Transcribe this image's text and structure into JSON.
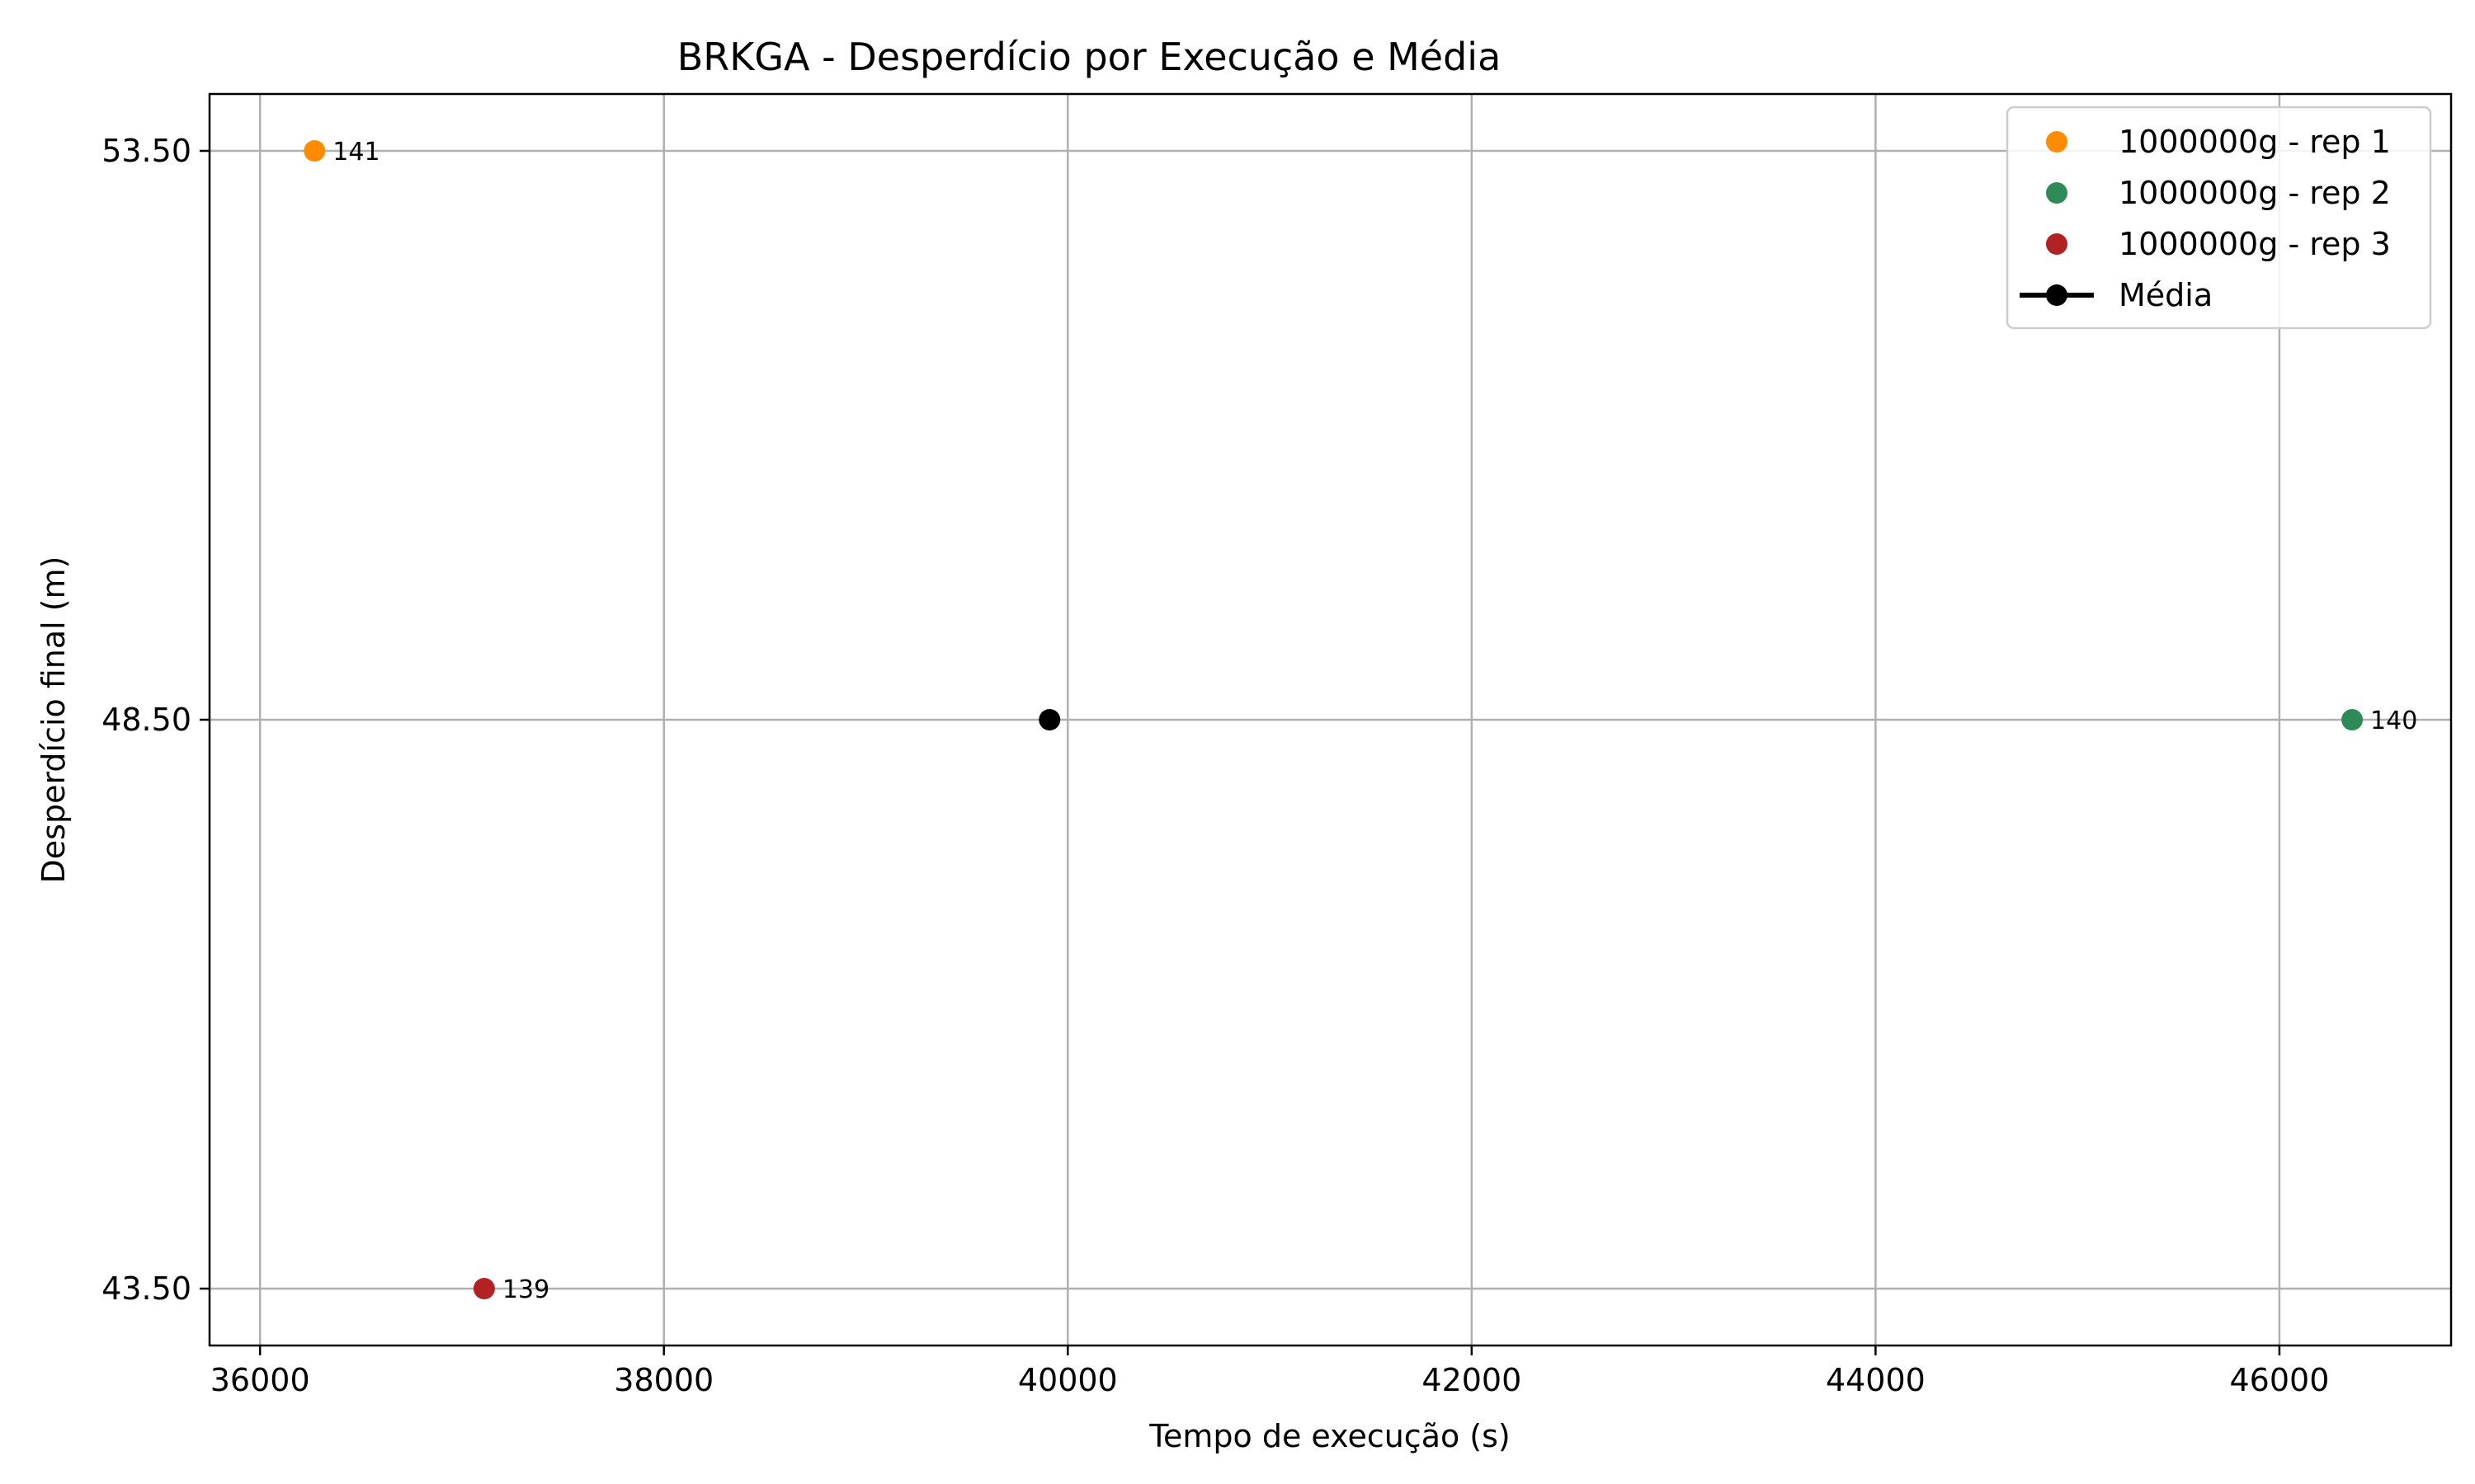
{
  "chart_data": {
    "type": "scatter",
    "title": "BRKGA - Desperdício por Execução e Média",
    "xlabel": "Tempo de execução (s)",
    "ylabel": "Desperdício final (m)",
    "xlim": [
      35750,
      46850
    ],
    "ylim": [
      43.0,
      54.0
    ],
    "xticks": [
      36000,
      38000,
      40000,
      42000,
      44000,
      46000
    ],
    "xtick_labels": [
      "36000",
      "38000",
      "40000",
      "42000",
      "44000",
      "46000"
    ],
    "yticks": [
      43.5,
      48.5,
      53.5
    ],
    "ytick_labels": [
      "43.50",
      "48.50",
      "53.50"
    ],
    "grid": true,
    "legend_position": "top-right",
    "series": [
      {
        "name": "1000000g - rep 1",
        "color": "#ff8c00",
        "marker": "circle",
        "x": [
          36270
        ],
        "y": [
          53.5
        ],
        "labels": [
          "141"
        ]
      },
      {
        "name": "1000000g - rep 2",
        "color": "#2e8b57",
        "marker": "circle",
        "x": [
          46360
        ],
        "y": [
          48.5
        ],
        "labels": [
          "140"
        ]
      },
      {
        "name": "1000000g - rep 3",
        "color": "#b22222",
        "marker": "circle",
        "x": [
          37110
        ],
        "y": [
          43.5
        ],
        "labels": [
          "139"
        ]
      },
      {
        "name": "Média",
        "color": "#000000",
        "marker": "circle-line",
        "x": [
          39910
        ],
        "y": [
          48.5
        ],
        "labels": [
          ""
        ]
      }
    ]
  }
}
